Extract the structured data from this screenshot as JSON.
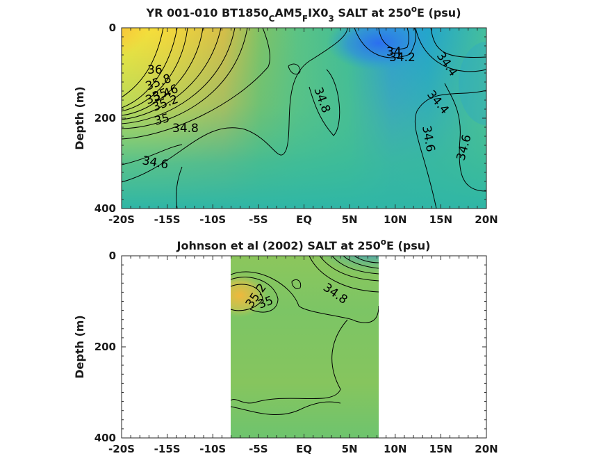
{
  "chart_data": [
    {
      "type": "heatmap",
      "title": {
        "pre": "YR 001-010 BT1850",
        "s1": "C",
        "mid": "AM5",
        "s2": "F",
        "mid2": "IX0",
        "s3": "3",
        "post1": " SALT at 250",
        "sup": "o",
        "post2": "E (psu)"
      },
      "ylabel": "Depth (m)",
      "xlim": [
        -20,
        20
      ],
      "ylim": [
        0,
        400
      ],
      "y_reversed": true,
      "xticks": [
        -20,
        -15,
        -10,
        -5,
        0,
        5,
        10,
        15,
        20
      ],
      "xticklabels": [
        "-20S",
        "-15S",
        "-10S",
        "-5S",
        "EQ",
        "5N",
        "10N",
        "15N",
        "20N"
      ],
      "yticks": [
        0,
        200,
        400
      ],
      "yticklabels": [
        "0",
        "200",
        "400"
      ],
      "data_extent": [
        -20,
        20
      ],
      "colormap": "parula",
      "clim": [
        34.0,
        36.2
      ],
      "contour_labels": [
        {
          "text": "36",
          "x": -17.3,
          "y": 95
        },
        {
          "text": "35.8",
          "x": -15.3,
          "y": 132
        },
        {
          "text": "35.6",
          "x": -14.8,
          "y": 150
        },
        {
          "text": "35.4",
          "x": -15.9,
          "y": 145
        },
        {
          "text": "35.2",
          "x": -15.0,
          "y": 162
        },
        {
          "text": "35",
          "x": -15.3,
          "y": 192
        },
        {
          "text": "34.8",
          "x": -12.8,
          "y": 212
        },
        {
          "text": "34.6",
          "x": -16.2,
          "y": 293
        },
        {
          "text": "34.8",
          "x": 2.2,
          "y": 160
        },
        {
          "text": "34",
          "x": 10.1,
          "y": 55
        },
        {
          "text": "34.2",
          "x": 11.1,
          "y": 63
        },
        {
          "text": "34.4",
          "x": 15.7,
          "y": 90
        },
        {
          "text": "34.4",
          "x": 15.9,
          "y": 160
        },
        {
          "text": "34.6",
          "x": 13.8,
          "y": 253
        },
        {
          "text": "34.6",
          "x": 17.7,
          "y": 256
        }
      ]
    },
    {
      "type": "heatmap",
      "title": {
        "pre": "Johnson et al (2002) SALT at 250",
        "sup": "o",
        "post2": "E (psu)"
      },
      "ylabel": "Depth (m)",
      "xlim": [
        -20,
        20
      ],
      "ylim": [
        0,
        400
      ],
      "y_reversed": true,
      "xticks": [
        -20,
        -15,
        -10,
        -5,
        0,
        5,
        10,
        15,
        20
      ],
      "xticklabels": [
        "-20S",
        "-15S",
        "-10S",
        "-5S",
        "EQ",
        "5N",
        "10N",
        "15N",
        "20N"
      ],
      "yticks": [
        0,
        200,
        400
      ],
      "yticklabels": [
        "0",
        "200",
        "400"
      ],
      "data_extent": [
        -8,
        8.3
      ],
      "colormap": "parula",
      "clim": [
        34.0,
        36.2
      ],
      "contour_labels": [
        {
          "text": "35.2",
          "x": -5.0,
          "y": 92
        },
        {
          "text": "35",
          "x": -4.0,
          "y": 102
        },
        {
          "text": "34.8",
          "x": 3.7,
          "y": 100
        }
      ]
    }
  ]
}
